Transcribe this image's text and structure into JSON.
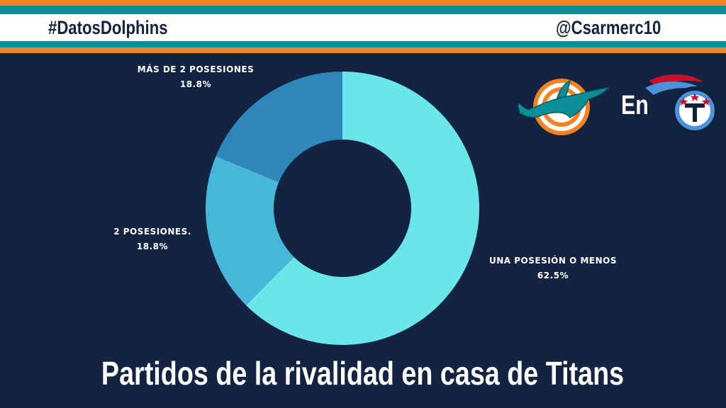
{
  "header": {
    "hashtag": "#DatosDolphins",
    "handle": "@Csarmerc10"
  },
  "matchup": {
    "connector": "En",
    "team_a_logo": "miami-dolphins-logo",
    "team_b_logo": "tennessee-titans-logo"
  },
  "colors": {
    "background": "#132442",
    "stripe_orange": "#f58220",
    "stripe_teal": "#0d8f9a",
    "slice_1": "#6ae5ea",
    "slice_2": "#46b7d8",
    "slice_3": "#2e86ba"
  },
  "chart_data": {
    "type": "pie",
    "donut": true,
    "title": "Partidos de la rivalidad en casa de Titans",
    "slices": [
      {
        "label": "UNA POSESIÓN O MENOS",
        "value": 62.5,
        "value_label": "62.5%"
      },
      {
        "label": "2 POSESIONES.",
        "value": 18.8,
        "value_label": "18.8%"
      },
      {
        "label": "MÁS DE 2 POSESIONES",
        "value": 18.8,
        "value_label": "18.8%"
      }
    ]
  }
}
